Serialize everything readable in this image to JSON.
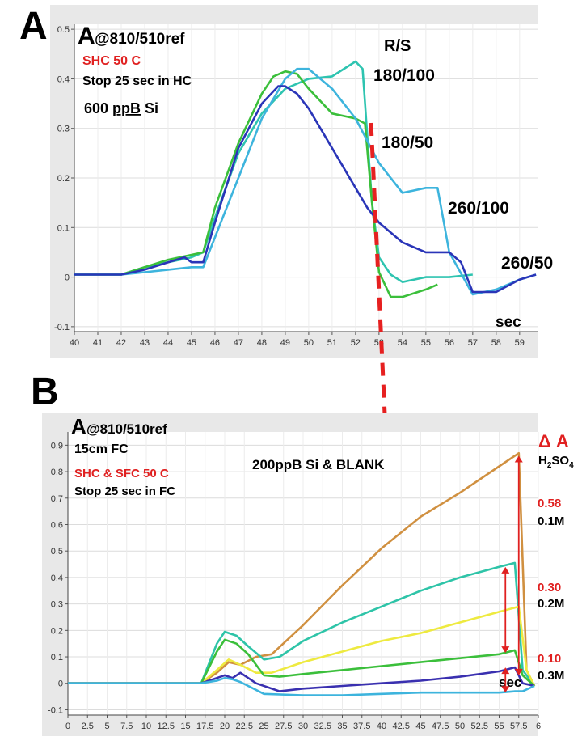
{
  "chart_data": [
    {
      "panel_label": "A",
      "type": "line",
      "title_big": "A",
      "title_sub": "@810/510ref",
      "annotations": {
        "condition": "SHC 50 C",
        "stop": "Stop 25 sec in HC",
        "concentration_value": "600 ",
        "concentration_unit": "ppB",
        "concentration_element": " Si",
        "rs_header": "R/S"
      },
      "xlabel": "sec",
      "xlim": [
        40,
        59.8
      ],
      "ylim": [
        -0.11,
        0.51
      ],
      "xticks": [
        "40",
        "41",
        "42",
        "43",
        "44",
        "45",
        "46",
        "47",
        "48",
        "49",
        "50",
        "51",
        "52",
        "53",
        "54",
        "55",
        "56",
        "57",
        "58",
        "59"
      ],
      "yticks": [
        "-0.1",
        "0",
        "0.1",
        "0.2",
        "0.3",
        "0.4",
        "0.5"
      ],
      "series": [
        {
          "name": "180/100",
          "color": "#2ec4b0",
          "x": [
            40,
            42,
            43,
            44,
            45,
            45.5,
            46,
            47,
            48,
            49,
            50,
            51,
            52,
            52.3,
            52.7,
            53,
            53.5,
            54,
            55,
            56,
            57
          ],
          "y": [
            0.005,
            0.005,
            0.02,
            0.03,
            0.04,
            0.05,
            0.12,
            0.25,
            0.33,
            0.38,
            0.4,
            0.405,
            0.435,
            0.42,
            0.15,
            0.04,
            0.005,
            -0.01,
            0,
            0,
            0.005
          ]
        },
        {
          "name": "180/50",
          "color": "#3bbf3b",
          "x": [
            40,
            42,
            43,
            44,
            45,
            45.5,
            46,
            47,
            48,
            48.5,
            49,
            49.5,
            50,
            51,
            52,
            52.4,
            52.7,
            53,
            53.5,
            54,
            55,
            55.5
          ],
          "y": [
            0.005,
            0.005,
            0.02,
            0.035,
            0.045,
            0.05,
            0.14,
            0.27,
            0.37,
            0.405,
            0.415,
            0.41,
            0.38,
            0.33,
            0.32,
            0.31,
            0.15,
            0.01,
            -0.04,
            -0.04,
            -0.025,
            -0.015
          ]
        },
        {
          "name": "260/100",
          "color": "#3db4dd",
          "x": [
            40,
            42,
            43,
            44,
            45,
            45.5,
            46,
            47,
            48,
            49,
            49.5,
            50,
            51,
            52,
            53,
            54,
            55,
            55.5,
            56,
            57,
            58,
            59,
            59.7
          ],
          "y": [
            0.005,
            0.005,
            0.01,
            0.015,
            0.02,
            0.02,
            0.08,
            0.2,
            0.32,
            0.4,
            0.42,
            0.42,
            0.38,
            0.32,
            0.23,
            0.17,
            0.18,
            0.18,
            0.05,
            -0.035,
            -0.025,
            -0.005,
            0.005
          ]
        },
        {
          "name": "260/50",
          "color": "#2a35b8",
          "x": [
            40,
            42,
            43,
            44,
            44.7,
            45,
            45.5,
            46,
            47,
            48,
            48.7,
            49,
            49.5,
            50,
            51,
            52,
            52.5,
            53,
            54,
            55,
            55.5,
            56,
            56.5,
            57,
            58,
            59,
            59.7
          ],
          "y": [
            0.005,
            0.005,
            0.015,
            0.03,
            0.04,
            0.03,
            0.03,
            0.11,
            0.26,
            0.35,
            0.385,
            0.385,
            0.37,
            0.34,
            0.26,
            0.18,
            0.14,
            0.11,
            0.07,
            0.05,
            0.05,
            0.05,
            0.03,
            -0.03,
            -0.03,
            -0.005,
            0.005
          ]
        }
      ]
    },
    {
      "panel_label": "B",
      "type": "line",
      "title_big": "A",
      "title_sub": "@810/510ref",
      "annotations": {
        "cell": "15cm  FC",
        "condition": "SHC & SFC 50 C",
        "stop": "Stop 25 sec in FC",
        "sample": "200ppB Si & BLANK",
        "delta_header": "Δ A",
        "acid_header_base": "H",
        "acid_header_sub1": "2",
        "acid_header_mid": "SO",
        "acid_header_sub2": "4"
      },
      "delta_labels": [
        {
          "value": "0.58",
          "molarity": "0.1M"
        },
        {
          "value": "0.30",
          "molarity": "0.2M"
        },
        {
          "value": "0.10",
          "molarity": "0.3M"
        }
      ],
      "xlabel": "sec",
      "xlim": [
        0,
        60
      ],
      "ylim": [
        -0.12,
        0.95
      ],
      "xticks": [
        "0",
        "2.5",
        "5",
        "7.5",
        "10",
        "12.5",
        "15",
        "17.5",
        "20",
        "22.5",
        "25",
        "27.5",
        "30",
        "32.5",
        "35",
        "37.5",
        "40",
        "42.5",
        "45",
        "47.5",
        "50",
        "52.5",
        "55",
        "57.5",
        "6"
      ],
      "yticks": [
        "-0.1",
        "0",
        "0.1",
        "0.2",
        "0.3",
        "0.4",
        "0.5",
        "0.6",
        "0.7",
        "0.8",
        "0.9"
      ],
      "series": [
        {
          "name": "",
          "color": "#d09040",
          "x": [
            0,
            17,
            19,
            20.5,
            22,
            24,
            26,
            30,
            35,
            40,
            45,
            50,
            55,
            57.5,
            58.5,
            59.5
          ],
          "y": [
            0,
            0,
            0.04,
            0.08,
            0.07,
            0.1,
            0.11,
            0.22,
            0.37,
            0.51,
            0.63,
            0.72,
            0.82,
            0.87,
            0.05,
            -0.01
          ]
        },
        {
          "name": "",
          "color": "#2ec4a8",
          "x": [
            0,
            17,
            19,
            20,
            21.5,
            23,
            25,
            27,
            30,
            35,
            40,
            45,
            50,
            55,
            57,
            58,
            59.5
          ],
          "y": [
            0,
            0,
            0.15,
            0.195,
            0.18,
            0.14,
            0.09,
            0.1,
            0.16,
            0.23,
            0.29,
            0.35,
            0.4,
            0.44,
            0.455,
            0.05,
            -0.01
          ]
        },
        {
          "name": "",
          "color": "#eeea40",
          "x": [
            0,
            17,
            19,
            20.5,
            22,
            24,
            26,
            30,
            35,
            40,
            45,
            50,
            55,
            57.5,
            58.5,
            59.5
          ],
          "y": [
            0,
            0,
            0.05,
            0.09,
            0.07,
            0.04,
            0.04,
            0.08,
            0.12,
            0.16,
            0.19,
            0.23,
            0.27,
            0.29,
            0.05,
            -0.01
          ]
        },
        {
          "name": "",
          "color": "#3bbf3b",
          "x": [
            0,
            17,
            19,
            20,
            21.5,
            23,
            25,
            27,
            30,
            35,
            40,
            45,
            50,
            55,
            57,
            58,
            59.5
          ],
          "y": [
            0,
            0,
            0.12,
            0.165,
            0.15,
            0.11,
            0.03,
            0.025,
            0.035,
            0.05,
            0.065,
            0.08,
            0.095,
            0.11,
            0.125,
            0.03,
            -0.01
          ]
        },
        {
          "name": "",
          "color": "#3a30b0",
          "x": [
            0,
            17,
            19,
            20,
            21,
            22,
            24,
            27,
            30,
            35,
            40,
            45,
            50,
            55,
            57,
            58,
            59.5
          ],
          "y": [
            0,
            0,
            0.02,
            0.03,
            0.02,
            0.04,
            0.0,
            -0.03,
            -0.02,
            -0.01,
            0.0,
            0.01,
            0.025,
            0.045,
            0.06,
            0.0,
            -0.01
          ]
        },
        {
          "name": "",
          "color": "#3db4dd",
          "x": [
            0,
            17,
            19,
            20,
            21,
            22,
            25,
            30,
            35,
            40,
            45,
            50,
            55,
            57,
            58,
            59.5
          ],
          "y": [
            0,
            0,
            0.01,
            0.02,
            0.015,
            0.005,
            -0.04,
            -0.045,
            -0.045,
            -0.04,
            -0.035,
            -0.035,
            -0.035,
            -0.03,
            -0.03,
            -0.01
          ]
        }
      ]
    }
  ]
}
